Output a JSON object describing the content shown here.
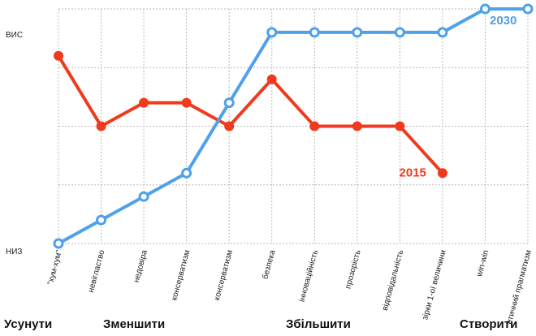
{
  "chart_data": {
    "type": "line",
    "title": "",
    "xlabel": "",
    "ylabel": "",
    "y_tick_labels": [
      {
        "value": 1,
        "label": "ВИС"
      },
      {
        "value": 0,
        "label": "НИЗ"
      }
    ],
    "ylim": [
      0,
      1
    ],
    "grid": true,
    "categories": [
      "\"хум-хум\"",
      "невігластво",
      "недовіра",
      "консерватизм",
      "консерватизм",
      "безпека",
      "інноваційність",
      "прозорість",
      "відповідальність",
      "зірки 1-ої величини",
      "win-win",
      "етичний прагматизм"
    ],
    "series": [
      {
        "name": "2015",
        "color": "#ef3a1d",
        "values": [
          0.8,
          0.5,
          0.6,
          0.6,
          0.5,
          0.7,
          0.5,
          0.5,
          0.5,
          0.3,
          null,
          null
        ]
      },
      {
        "name": "2030",
        "color": "#4ea1ea",
        "values": [
          0.0,
          0.1,
          0.2,
          0.3,
          0.6,
          0.9,
          0.9,
          0.9,
          0.9,
          0.9,
          1.0,
          1.0
        ]
      }
    ],
    "groups": [
      {
        "label": "Усунути",
        "categories": [
          0
        ]
      },
      {
        "label": "Зменшити",
        "categories": [
          1,
          2,
          3
        ]
      },
      {
        "label": "Збільшити",
        "categories": [
          4,
          5,
          6,
          7,
          8,
          9
        ]
      },
      {
        "label": "Створити",
        "categories": [
          10,
          11
        ]
      }
    ]
  }
}
